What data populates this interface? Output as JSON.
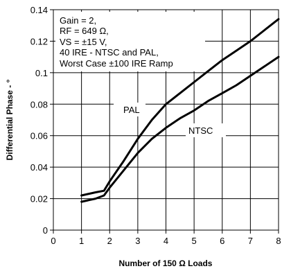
{
  "chart_data": {
    "type": "line",
    "xlabel": "Number of 150 Ω Loads",
    "ylabel": "Differential Phase - °",
    "xlim": [
      0,
      8
    ],
    "ylim": [
      0,
      0.14
    ],
    "x_ticks": [
      "0",
      "1",
      "2",
      "3",
      "4",
      "5",
      "6",
      "7",
      "8"
    ],
    "y_ticks": [
      "0",
      "0.02",
      "0.04",
      "0.06",
      "0.08",
      "0.1",
      "0.12",
      "0.14"
    ],
    "grid": true,
    "annotation_lines": [
      "Gain = 2,",
      "RF = 649 Ω,",
      "VS = ±15 V,",
      "40 IRE - NTSC and PAL,",
      "Worst Case ±100 IRE Ramp"
    ],
    "series": [
      {
        "name": "PAL",
        "x": [
          1,
          1.5,
          1.8,
          2,
          2.5,
          3,
          3.5,
          4,
          4.5,
          5,
          5.5,
          6,
          6.5,
          7,
          7.5,
          8
        ],
        "values": [
          0.022,
          0.024,
          0.025,
          0.031,
          0.044,
          0.058,
          0.07,
          0.08,
          0.087,
          0.094,
          0.101,
          0.108,
          0.114,
          0.12,
          0.127,
          0.134
        ]
      },
      {
        "name": "NTSC",
        "x": [
          1,
          1.5,
          1.8,
          2,
          2.5,
          3,
          3.5,
          4,
          4.5,
          5,
          5.5,
          6,
          6.5,
          7,
          7.5,
          8
        ],
        "values": [
          0.018,
          0.02,
          0.022,
          0.027,
          0.038,
          0.049,
          0.058,
          0.065,
          0.071,
          0.076,
          0.082,
          0.087,
          0.092,
          0.098,
          0.104,
          0.11
        ]
      }
    ]
  }
}
